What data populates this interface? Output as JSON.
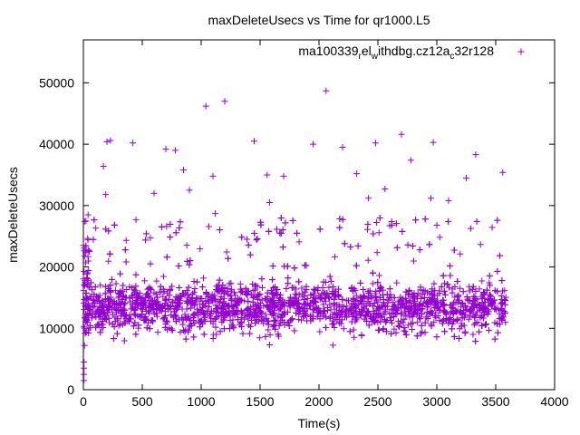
{
  "chart_data": {
    "type": "scatter",
    "title": "maxDeleteUsecs vs Time for qr1000.L5",
    "xlabel": "Time(s)",
    "ylabel": "maxDeleteUsecs",
    "xlim": [
      0,
      4000
    ],
    "ylim": [
      0,
      57000
    ],
    "xticks": [
      0,
      500,
      1000,
      1500,
      2000,
      2500,
      3000,
      3500,
      4000
    ],
    "yticks": [
      0,
      10000,
      20000,
      30000,
      40000,
      50000
    ],
    "grid": false,
    "legend": "top-right",
    "marker": "plus",
    "series": [
      {
        "name": "ma100339.rel_withdbg.cz12a_c32r128",
        "name_parts": {
          "a": "ma100339",
          "b": "r",
          "c": "el",
          "d": "w",
          "e": "ithdbg.cz12a",
          "f": "c",
          "g": "32r128"
        },
        "color": "#9400d3",
        "outliers": [
          [
            5,
            1500
          ],
          [
            5,
            2500
          ],
          [
            5,
            3500
          ],
          [
            5,
            4500
          ],
          [
            10,
            7200
          ],
          [
            40,
            28500
          ],
          [
            170,
            36400
          ],
          [
            190,
            31800
          ],
          [
            200,
            40400
          ],
          [
            230,
            40600
          ],
          [
            420,
            40200
          ],
          [
            600,
            32000
          ],
          [
            700,
            39200
          ],
          [
            780,
            39000
          ],
          [
            850,
            35800
          ],
          [
            900,
            32500
          ],
          [
            1040,
            46200
          ],
          [
            1200,
            47000
          ],
          [
            1450,
            40500
          ],
          [
            1560,
            35000
          ],
          [
            1700,
            34800
          ],
          [
            1950,
            40000
          ],
          [
            2060,
            48700
          ],
          [
            2200,
            39500
          ],
          [
            2320,
            35200
          ],
          [
            2480,
            40200
          ],
          [
            2700,
            41600
          ],
          [
            2780,
            37400
          ],
          [
            2970,
            40300
          ],
          [
            3330,
            38300
          ],
          [
            3560,
            35400
          ],
          [
            1580,
            30500
          ],
          [
            3100,
            30800
          ],
          [
            2950,
            31200
          ],
          [
            2560,
            32700
          ],
          [
            1100,
            34800
          ],
          [
            1120,
            28700
          ],
          [
            2420,
            31200
          ],
          [
            3250,
            34500
          ],
          [
            3000,
            26800
          ]
        ],
        "bands": [
          {
            "x_start": 5,
            "x_end": 3590,
            "y_min": 4000,
            "y_max": 28000,
            "n": 3300
          }
        ]
      }
    ]
  }
}
